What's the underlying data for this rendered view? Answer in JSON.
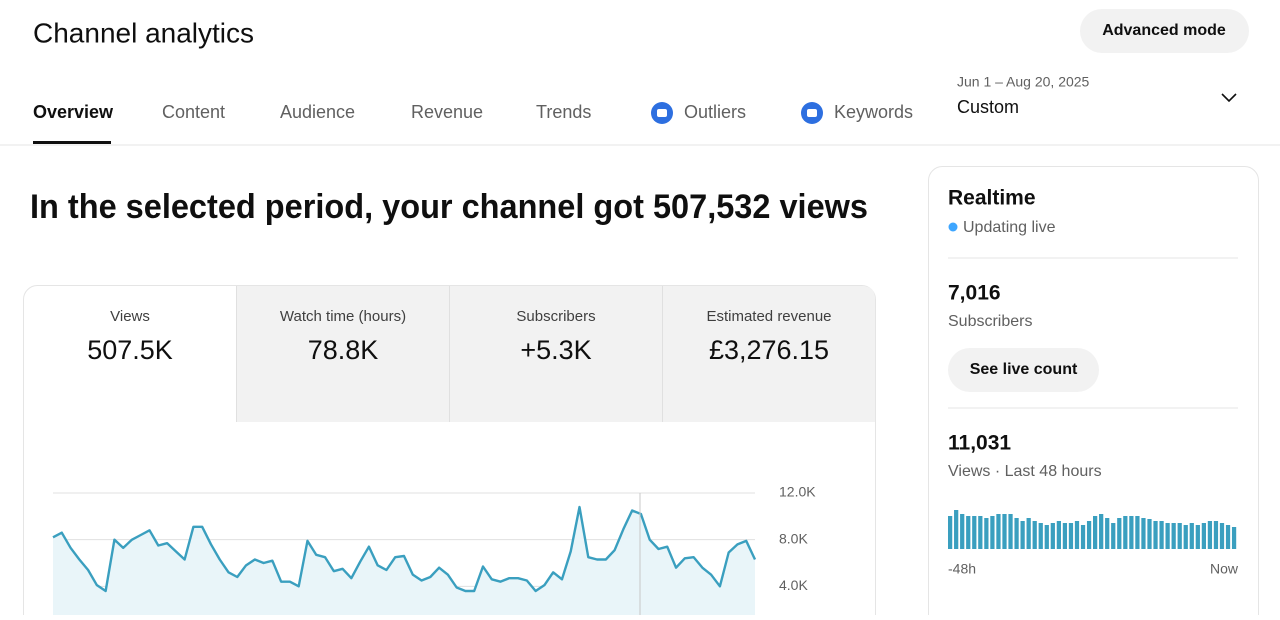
{
  "header": {
    "title": "Channel analytics",
    "advanced_mode": "Advanced mode"
  },
  "tabs": [
    "Overview",
    "Content",
    "Audience",
    "Revenue",
    "Trends",
    "Outliers",
    "Keywords"
  ],
  "date_range": {
    "dates": "Jun 1 – Aug 20, 2025",
    "preset": "Custom"
  },
  "headline": "In the selected period, your channel got 507,532 views",
  "metrics": [
    {
      "label": "Views",
      "value": "507.5K"
    },
    {
      "label": "Watch time (hours)",
      "value": "78.8K"
    },
    {
      "label": "Subscribers",
      "value": "+5.3K"
    },
    {
      "label": "Estimated revenue",
      "value": "£3,276.15"
    }
  ],
  "views_chart": {
    "type": "line",
    "color": "#3a9fbf",
    "values": [
      8200,
      8600,
      7300,
      6300,
      5400,
      4100,
      3600,
      8000,
      7300,
      8000,
      8400,
      8800,
      7500,
      7700,
      7000,
      6300,
      9100,
      9100,
      7600,
      6300,
      5200,
      4800,
      5800,
      6300,
      6000,
      6200,
      4400,
      4400,
      4000,
      7900,
      6700,
      6500,
      5300,
      5500,
      4700,
      6100,
      7400,
      5800,
      5400,
      6500,
      6600,
      5000,
      4500,
      4800,
      5600,
      5000,
      3900,
      3600,
      3600,
      5700,
      4600,
      4400,
      4700,
      4700,
      4500,
      3600,
      4100,
      5200,
      4600,
      7000,
      10800,
      6500,
      6300,
      6300,
      7100,
      8900,
      10500,
      10200,
      8000,
      7200,
      7400,
      5600,
      6400,
      6500,
      5600,
      5000,
      4000,
      6900,
      7600,
      7900,
      6300
    ],
    "ylim": [
      0,
      12000
    ],
    "yticks": [
      {
        "value": 12000,
        "label": "12.0K"
      },
      {
        "value": 8000,
        "label": "8.0K"
      },
      {
        "value": 4000,
        "label": "4.0K"
      }
    ]
  },
  "realtime": {
    "title": "Realtime",
    "status": "Updating live",
    "subscribers": {
      "value": "7,016",
      "label": "Subscribers"
    },
    "button": "See live count",
    "views": {
      "value": "11,031",
      "label": "Views · Last 48 hours"
    },
    "bars": {
      "type": "bar",
      "color": "#3a9fbf",
      "values": [
        231,
        273,
        245,
        231,
        231,
        231,
        217,
        231,
        245,
        245,
        245,
        217,
        196,
        217,
        196,
        182,
        168,
        182,
        196,
        182,
        182,
        196,
        168,
        196,
        231,
        245,
        217,
        182,
        217,
        231,
        231,
        231,
        217,
        210,
        196,
        196,
        182,
        182,
        182,
        168,
        182,
        168,
        182,
        196,
        196,
        182,
        168,
        154
      ]
    },
    "x_start": "-48h",
    "x_end": "Now"
  }
}
